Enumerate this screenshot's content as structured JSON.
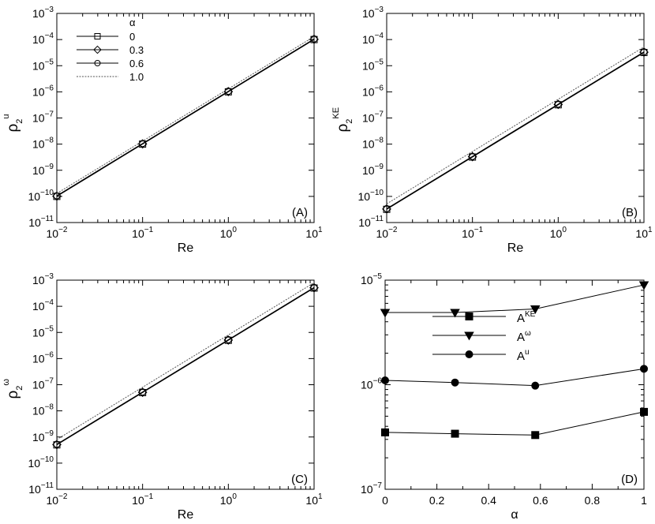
{
  "chart_data": [
    {
      "type": "line",
      "panel": "A",
      "xlabel": "Re",
      "ylabel": {
        "base": "ρ",
        "sub": "2",
        "sup": "u"
      },
      "xscale": "log",
      "yscale": "log",
      "xlim": [
        0.01,
        10
      ],
      "ylim": [
        1e-11,
        0.001
      ],
      "x_ticks": [
        0.01,
        0.1,
        1,
        10
      ],
      "y_ticks": [
        1e-11,
        1e-10,
        1e-09,
        1e-08,
        1e-07,
        1e-06,
        1e-05,
        0.0001,
        0.001
      ],
      "legend": {
        "title": "α",
        "placement": "top-left"
      },
      "x": [
        0.01,
        0.1,
        1,
        10
      ],
      "series": [
        {
          "name": "0",
          "marker": "square",
          "style": "solid",
          "values": [
            1e-10,
            1e-08,
            1e-06,
            0.0001
          ]
        },
        {
          "name": "0.3",
          "marker": "diamond",
          "style": "solid",
          "values": [
            1.02e-10,
            1.02e-08,
            1.02e-06,
            0.000102
          ]
        },
        {
          "name": "0.6",
          "marker": "circle",
          "style": "solid",
          "values": [
            1.06e-10,
            1.06e-08,
            1.06e-06,
            0.000106
          ]
        },
        {
          "name": "1.0",
          "marker": "none",
          "style": "dotted",
          "values": [
            1.3e-10,
            1.3e-08,
            1.3e-06,
            0.00013
          ]
        }
      ],
      "panel_label": "(A)"
    },
    {
      "type": "line",
      "panel": "B",
      "xlabel": "Re",
      "ylabel": {
        "base": "ρ",
        "sub": "2",
        "sup": "KE"
      },
      "xscale": "log",
      "yscale": "log",
      "xlim": [
        0.01,
        10
      ],
      "ylim": [
        1e-11,
        0.001
      ],
      "x_ticks": [
        0.01,
        0.1,
        1,
        10
      ],
      "y_ticks": [
        1e-11,
        1e-10,
        1e-09,
        1e-08,
        1e-07,
        1e-06,
        1e-05,
        0.0001,
        0.001
      ],
      "x": [
        0.01,
        0.1,
        1,
        10
      ],
      "series": [
        {
          "name": "0",
          "marker": "square",
          "style": "solid",
          "values": [
            3.2e-11,
            3.2e-09,
            3.2e-07,
            3.2e-05
          ]
        },
        {
          "name": "0.3",
          "marker": "diamond",
          "style": "solid",
          "values": [
            3.3e-11,
            3.3e-09,
            3.3e-07,
            3.3e-05
          ]
        },
        {
          "name": "0.6",
          "marker": "circle",
          "style": "solid",
          "values": [
            3.4e-11,
            3.4e-09,
            3.4e-07,
            3.4e-05
          ]
        },
        {
          "name": "1.0",
          "marker": "none",
          "style": "dotted",
          "values": [
            5.2e-11,
            5.2e-09,
            5.2e-07,
            5.2e-05
          ]
        }
      ],
      "panel_label": "(B)"
    },
    {
      "type": "line",
      "panel": "C",
      "xlabel": "Re",
      "ylabel": {
        "base": "ρ",
        "sub": "2",
        "sup": "ω"
      },
      "xscale": "log",
      "yscale": "log",
      "xlim": [
        0.01,
        10
      ],
      "ylim": [
        1e-11,
        0.001
      ],
      "x_ticks": [
        0.01,
        0.1,
        1,
        10
      ],
      "y_ticks": [
        1e-11,
        1e-10,
        1e-09,
        1e-08,
        1e-07,
        1e-06,
        1e-05,
        0.0001,
        0.001
      ],
      "x": [
        0.01,
        0.1,
        1,
        10
      ],
      "series": [
        {
          "name": "0",
          "marker": "square",
          "style": "solid",
          "values": [
            5e-10,
            5e-08,
            5e-06,
            0.0005
          ]
        },
        {
          "name": "0.3",
          "marker": "diamond",
          "style": "solid",
          "values": [
            5.1e-10,
            5.1e-08,
            5.1e-06,
            0.00051
          ]
        },
        {
          "name": "0.6",
          "marker": "circle",
          "style": "solid",
          "values": [
            5.3e-10,
            5.3e-08,
            5.3e-06,
            0.00053
          ]
        },
        {
          "name": "1.0",
          "marker": "none",
          "style": "dotted",
          "values": [
            8e-10,
            8e-08,
            8e-06,
            0.0008
          ]
        }
      ],
      "panel_label": "(C)"
    },
    {
      "type": "line",
      "panel": "D",
      "xlabel": "α",
      "ylabel": null,
      "xscale": "linear",
      "yscale": "log",
      "xlim": [
        0,
        1
      ],
      "ylim": [
        1e-07,
        1e-05
      ],
      "x_ticks": [
        0,
        0.2,
        0.4,
        0.6,
        0.8,
        1
      ],
      "x_tick_labels": [
        "0",
        "0.2",
        "0.4",
        "0.6",
        "0.8",
        "1"
      ],
      "y_ticks": [
        1e-07,
        1e-06,
        1e-05
      ],
      "legend": {
        "placement": "center-left"
      },
      "x": [
        0,
        0.27,
        0.58,
        1
      ],
      "series": [
        {
          "name": {
            "base": "A",
            "sup": "KE"
          },
          "marker": "square-filled",
          "values": [
            3.5e-07,
            3.4e-07,
            3.3e-07,
            5.5e-07
          ]
        },
        {
          "name": {
            "base": "A",
            "sup": "ω"
          },
          "marker": "triangle-down-filled",
          "values": [
            4.9e-06,
            4.9e-06,
            5.3e-06,
            9e-06
          ]
        },
        {
          "name": {
            "base": "A",
            "sup": "u"
          },
          "marker": "circle-filled",
          "values": [
            1.1e-06,
            1.05e-06,
            9.8e-07,
            1.42e-06
          ]
        }
      ],
      "panel_label": "(D)"
    }
  ]
}
